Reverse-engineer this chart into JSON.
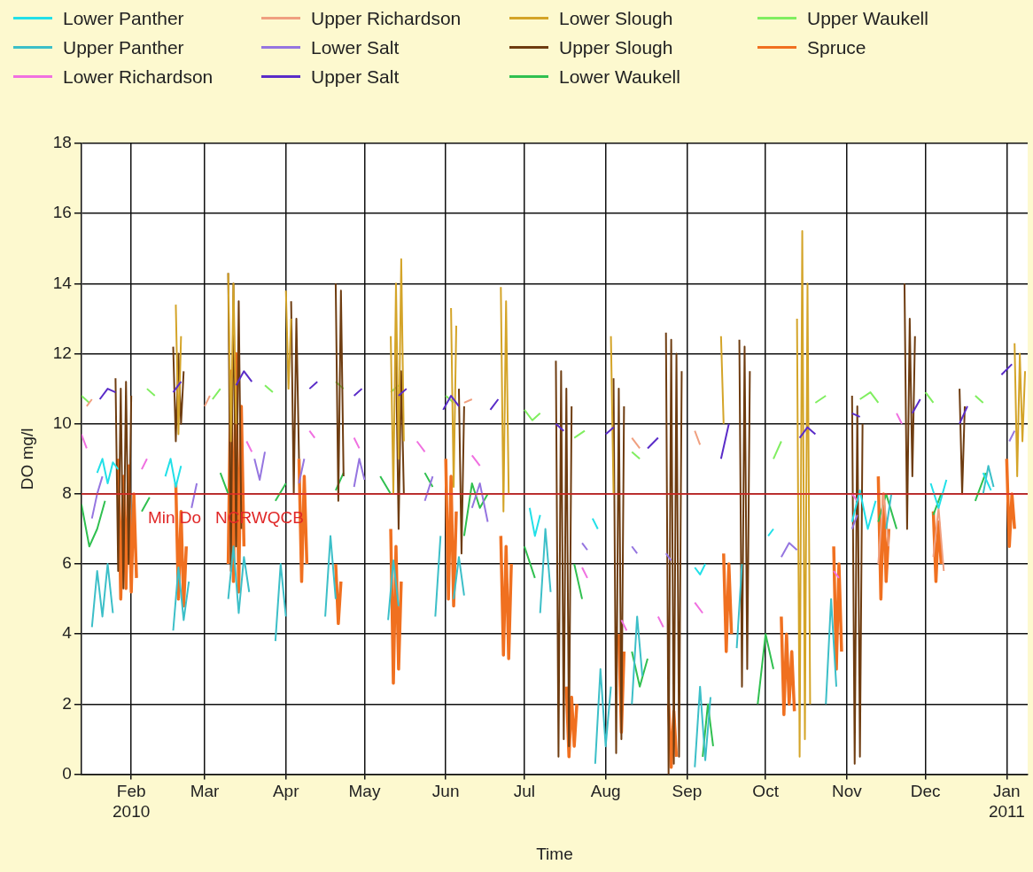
{
  "chart_data": {
    "type": "line",
    "xlabel": "Time",
    "ylabel": "DO mg/l",
    "legend": "top",
    "grid": true,
    "marker": "none",
    "line_style": "solid",
    "xlim": [
      "2010-01-13",
      "2011-01-09"
    ],
    "xticks": [
      {
        "value": "2010-02-01",
        "label": "Feb\n2010"
      },
      {
        "value": "2010-03-01",
        "label": "Mar"
      },
      {
        "value": "2010-04-01",
        "label": "Apr"
      },
      {
        "value": "2010-05-01",
        "label": "May"
      },
      {
        "value": "2010-06-01",
        "label": "Jun"
      },
      {
        "value": "2010-07-01",
        "label": "Jul"
      },
      {
        "value": "2010-08-01",
        "label": "Aug"
      },
      {
        "value": "2010-09-01",
        "label": "Sep"
      },
      {
        "value": "2010-10-01",
        "label": "Oct"
      },
      {
        "value": "2010-11-01",
        "label": "Nov"
      },
      {
        "value": "2010-12-01",
        "label": "Dec"
      },
      {
        "value": "2011-01-01",
        "label": "Jan\n2011"
      }
    ],
    "ylim": [
      0,
      18
    ],
    "yticks": [
      0,
      2,
      4,
      6,
      8,
      10,
      12,
      14,
      16,
      18
    ],
    "ref_lines": [
      {
        "axis": "y",
        "value": 8,
        "label": "Min Do   NCRWQCB",
        "color": "#e02828"
      }
    ],
    "series": [
      {
        "name": "Lower Panther",
        "color": "#22e0e8",
        "x": [
          "2010-01-19",
          "2010-01-21",
          "2010-01-23",
          "2010-01-25",
          "2010-01-27",
          "2010-01-28",
          "2010-02-14",
          "2010-02-16",
          "2010-02-18",
          "2010-02-20",
          "2010-02-21",
          "2010-07-03",
          "2010-07-05",
          "2010-07-07",
          "2010-07-08",
          "2010-07-27",
          "2010-07-29",
          "2010-07-30",
          "2010-09-04",
          "2010-09-06",
          "2010-09-08",
          "2010-09-09",
          "2010-10-02",
          "2010-10-04",
          "2010-10-05",
          "2010-11-03",
          "2010-11-06",
          "2010-11-09",
          "2010-11-12",
          "2010-11-13",
          "2010-12-03",
          "2010-12-06",
          "2010-12-09",
          "2010-12-10",
          "2010-12-23",
          "2010-12-26"
        ],
        "values": [
          8.6,
          9.0,
          8.3,
          8.9,
          8.7,
          null,
          8.5,
          9.0,
          8.2,
          8.8,
          null,
          7.6,
          6.8,
          7.4,
          null,
          7.3,
          7.0,
          null,
          5.9,
          5.7,
          6.0,
          null,
          6.8,
          7.0,
          null,
          7.2,
          8.1,
          7.0,
          7.8,
          null,
          8.3,
          7.6,
          8.4,
          null,
          8.6,
          8.1
        ]
      },
      {
        "name": "Upper Panther",
        "color": "#3cbfc8",
        "x": [
          "2010-01-17",
          "2010-01-19",
          "2010-01-21",
          "2010-01-23",
          "2010-01-25",
          "2010-01-26",
          "2010-02-17",
          "2010-02-19",
          "2010-02-21",
          "2010-02-23",
          "2010-02-24",
          "2010-03-10",
          "2010-03-12",
          "2010-03-14",
          "2010-03-16",
          "2010-03-18",
          "2010-03-19",
          "2010-03-28",
          "2010-03-30",
          "2010-04-01",
          "2010-04-02",
          "2010-04-16",
          "2010-04-18",
          "2010-04-20",
          "2010-04-21",
          "2010-05-10",
          "2010-05-12",
          "2010-05-14",
          "2010-05-15",
          "2010-05-28",
          "2010-05-30",
          "2010-05-31",
          "2010-06-04",
          "2010-06-06",
          "2010-06-08",
          "2010-06-09",
          "2010-07-07",
          "2010-07-09",
          "2010-07-11",
          "2010-07-12",
          "2010-07-28",
          "2010-07-30",
          "2010-08-01",
          "2010-08-03",
          "2010-08-04",
          "2010-08-11",
          "2010-08-13",
          "2010-08-15",
          "2010-08-16",
          "2010-09-04",
          "2010-09-06",
          "2010-09-08",
          "2010-09-10",
          "2010-09-11",
          "2010-09-20",
          "2010-09-22",
          "2010-09-23",
          "2010-10-24",
          "2010-10-26",
          "2010-10-28",
          "2010-10-29",
          "2010-11-16",
          "2010-11-18",
          "2010-11-19",
          "2010-12-23",
          "2010-12-25",
          "2010-12-27"
        ],
        "values": [
          4.2,
          5.8,
          4.5,
          6.0,
          4.6,
          null,
          4.1,
          5.9,
          4.4,
          5.5,
          null,
          5.0,
          6.5,
          4.6,
          6.2,
          5.2,
          null,
          3.8,
          6.0,
          4.5,
          null,
          4.5,
          6.8,
          5.0,
          null,
          4.4,
          6.1,
          4.8,
          null,
          4.5,
          6.8,
          null,
          5.0,
          6.2,
          5.1,
          null,
          4.6,
          7.0,
          5.2,
          null,
          0.3,
          3.0,
          0.8,
          2.5,
          null,
          2.0,
          4.5,
          2.8,
          null,
          0.2,
          2.5,
          0.4,
          2.2,
          null,
          3.6,
          6.0,
          null,
          2.0,
          5.0,
          2.5,
          null,
          7.0,
          8.0,
          null,
          8.0,
          8.8,
          8.2
        ]
      },
      {
        "name": "Lower Richardson",
        "color": "#f070e0",
        "x": [
          "2010-01-13",
          "2010-01-15",
          "2010-01-16",
          "2010-02-05",
          "2010-02-07",
          "2010-02-08",
          "2010-03-17",
          "2010-03-19",
          "2010-03-20",
          "2010-04-10",
          "2010-04-12",
          "2010-04-13",
          "2010-04-27",
          "2010-04-29",
          "2010-04-30",
          "2010-05-21",
          "2010-05-24",
          "2010-05-25",
          "2010-06-11",
          "2010-06-14",
          "2010-06-15",
          "2010-07-23",
          "2010-07-25",
          "2010-07-26",
          "2010-08-07",
          "2010-08-09",
          "2010-08-10",
          "2010-08-21",
          "2010-08-23",
          "2010-08-24",
          "2010-09-04",
          "2010-09-07",
          "2010-09-08",
          "2010-10-27",
          "2010-10-29",
          "2010-10-30",
          "2010-11-03",
          "2010-11-05",
          "2010-11-06",
          "2010-11-20",
          "2010-11-22"
        ],
        "values": [
          9.7,
          9.3,
          null,
          8.7,
          9.0,
          null,
          9.5,
          9.2,
          null,
          9.8,
          9.6,
          null,
          9.6,
          9.3,
          null,
          9.5,
          9.2,
          null,
          9.1,
          8.8,
          null,
          5.9,
          5.6,
          null,
          4.4,
          4.1,
          null,
          4.5,
          4.2,
          null,
          4.9,
          4.6,
          null,
          5.8,
          5.6,
          null,
          8.0,
          7.8,
          null,
          10.3,
          10.0
        ]
      },
      {
        "name": "Upper Richardson",
        "color": "#f0a080",
        "x": [
          "2010-01-15",
          "2010-01-17",
          "2010-01-18",
          "2010-03-01",
          "2010-03-03",
          "2010-03-04",
          "2010-06-08",
          "2010-06-11",
          "2010-06-12",
          "2010-08-11",
          "2010-08-14",
          "2010-08-15",
          "2010-09-04",
          "2010-09-06",
          "2010-09-07",
          "2010-11-13",
          "2010-11-15",
          "2010-11-17",
          "2010-11-18",
          "2010-12-04",
          "2010-12-06",
          "2010-12-08"
        ],
        "values": [
          10.5,
          10.7,
          null,
          10.5,
          10.8,
          null,
          10.6,
          10.7,
          null,
          9.6,
          9.3,
          null,
          9.8,
          9.4,
          null,
          6.0,
          8.0,
          6.5,
          null,
          6.2,
          7.6,
          5.8
        ]
      },
      {
        "name": "Lower Salt",
        "color": "#9575e0",
        "x": [
          "2010-01-17",
          "2010-01-19",
          "2010-01-21",
          "2010-01-22",
          "2010-02-24",
          "2010-02-26",
          "2010-02-27",
          "2010-03-20",
          "2010-03-22",
          "2010-03-24",
          "2010-03-25",
          "2010-04-06",
          "2010-04-08",
          "2010-04-09",
          "2010-04-27",
          "2010-04-29",
          "2010-05-01",
          "2010-05-02",
          "2010-05-24",
          "2010-05-27",
          "2010-05-28",
          "2010-06-11",
          "2010-06-14",
          "2010-06-17",
          "2010-06-18",
          "2010-07-23",
          "2010-07-25",
          "2010-07-26",
          "2010-08-11",
          "2010-08-13",
          "2010-08-14",
          "2010-08-24",
          "2010-08-26",
          "2010-08-27",
          "2010-10-07",
          "2010-10-10",
          "2010-10-13",
          "2010-10-14",
          "2010-11-03",
          "2010-11-05",
          "2010-11-06",
          "2011-01-02",
          "2011-01-04"
        ],
        "values": [
          7.3,
          8.0,
          8.5,
          null,
          7.6,
          8.3,
          null,
          9.0,
          8.4,
          9.2,
          null,
          8.3,
          9.0,
          null,
          8.2,
          9.0,
          8.4,
          null,
          7.8,
          8.5,
          null,
          7.6,
          8.3,
          7.2,
          null,
          6.6,
          6.4,
          null,
          6.5,
          6.3,
          null,
          6.3,
          6.1,
          null,
          6.2,
          6.6,
          6.4,
          null,
          7.0,
          7.4,
          null,
          9.5,
          9.8
        ]
      },
      {
        "name": "Upper Salt",
        "color": "#5a2cc8",
        "x": [
          "2010-01-20",
          "2010-01-23",
          "2010-01-26",
          "2010-01-27",
          "2010-02-17",
          "2010-02-20",
          "2010-02-21",
          "2010-03-13",
          "2010-03-16",
          "2010-03-19",
          "2010-03-20",
          "2010-04-10",
          "2010-04-13",
          "2010-04-14",
          "2010-04-27",
          "2010-04-30",
          "2010-05-01",
          "2010-05-14",
          "2010-05-17",
          "2010-05-18",
          "2010-05-31",
          "2010-06-03",
          "2010-06-06",
          "2010-06-07",
          "2010-06-18",
          "2010-06-21",
          "2010-06-22",
          "2010-07-13",
          "2010-07-16",
          "2010-07-17",
          "2010-08-01",
          "2010-08-04",
          "2010-08-05",
          "2010-08-17",
          "2010-08-21",
          "2010-08-22",
          "2010-09-14",
          "2010-09-17",
          "2010-09-18",
          "2010-10-14",
          "2010-10-17",
          "2010-10-20",
          "2010-10-21",
          "2010-11-03",
          "2010-11-06",
          "2010-11-07",
          "2010-11-26",
          "2010-11-29",
          "2010-11-30",
          "2010-12-14",
          "2010-12-17",
          "2010-12-18",
          "2010-12-30",
          "2011-01-03"
        ],
        "values": [
          10.7,
          11.0,
          10.9,
          null,
          10.9,
          11.2,
          null,
          11.1,
          11.5,
          11.2,
          null,
          11.0,
          11.2,
          null,
          10.8,
          11.0,
          null,
          10.8,
          11.0,
          null,
          10.4,
          10.8,
          10.5,
          null,
          10.4,
          10.7,
          null,
          10.0,
          9.8,
          null,
          9.7,
          9.9,
          null,
          9.3,
          9.6,
          null,
          9.0,
          10.0,
          null,
          9.6,
          9.9,
          9.7,
          null,
          10.3,
          10.2,
          null,
          10.3,
          10.7,
          null,
          10.0,
          10.5,
          null,
          11.4,
          11.7
        ]
      },
      {
        "name": "Lower Slough",
        "color": "#d4a428",
        "x": [
          "2010-02-18",
          "2010-02-19",
          "2010-02-20",
          "2010-02-21",
          "2010-03-10",
          "2010-03-11",
          "2010-03-12",
          "2010-03-13",
          "2010-03-14",
          "2010-04-01",
          "2010-04-02",
          "2010-04-03",
          "2010-04-04",
          "2010-05-11",
          "2010-05-12",
          "2010-05-13",
          "2010-05-14",
          "2010-05-15",
          "2010-05-16",
          "2010-05-17",
          "2010-06-03",
          "2010-06-04",
          "2010-06-05",
          "2010-06-06",
          "2010-06-22",
          "2010-06-23",
          "2010-06-24",
          "2010-06-25",
          "2010-06-26",
          "2010-08-03",
          "2010-08-04",
          "2010-08-05",
          "2010-09-14",
          "2010-09-15",
          "2010-09-16",
          "2010-10-13",
          "2010-10-14",
          "2010-10-15",
          "2010-10-16",
          "2010-10-17",
          "2010-10-18",
          "2010-10-19",
          "2011-01-04",
          "2011-01-05",
          "2011-01-06",
          "2011-01-07",
          "2011-01-08"
        ],
        "values": [
          13.4,
          9.7,
          12.5,
          null,
          14.3,
          9.5,
          14.0,
          10.0,
          null,
          13.8,
          11.0,
          13.0,
          null,
          12.5,
          8.0,
          14.0,
          9.0,
          14.7,
          9.5,
          null,
          13.3,
          8.2,
          12.8,
          null,
          13.9,
          7.5,
          13.5,
          8.0,
          null,
          12.5,
          8.0,
          null,
          12.5,
          10.0,
          null,
          13.0,
          0.5,
          15.5,
          1.0,
          14.0,
          2.0,
          null,
          12.3,
          8.5,
          12.0,
          9.5,
          11.5
        ]
      },
      {
        "name": "Upper Slough",
        "color": "#6e3c10",
        "x": [
          "2010-01-26",
          "2010-01-27",
          "2010-01-28",
          "2010-01-29",
          "2010-01-30",
          "2010-01-31",
          "2010-02-01",
          "2010-02-02",
          "2010-02-17",
          "2010-02-18",
          "2010-02-19",
          "2010-02-20",
          "2010-02-21",
          "2010-02-22",
          "2010-03-10",
          "2010-03-11",
          "2010-03-12",
          "2010-03-13",
          "2010-03-14",
          "2010-03-15",
          "2010-03-16",
          "2010-04-03",
          "2010-04-04",
          "2010-04-05",
          "2010-04-06",
          "2010-04-07",
          "2010-04-20",
          "2010-04-21",
          "2010-04-22",
          "2010-04-23",
          "2010-04-24",
          "2010-05-13",
          "2010-05-14",
          "2010-05-15",
          "2010-05-16",
          "2010-05-17",
          "2010-06-06",
          "2010-06-07",
          "2010-06-08",
          "2010-06-09",
          "2010-07-13",
          "2010-07-14",
          "2010-07-15",
          "2010-07-16",
          "2010-07-17",
          "2010-07-18",
          "2010-07-19",
          "2010-07-20",
          "2010-08-04",
          "2010-08-05",
          "2010-08-06",
          "2010-08-07",
          "2010-08-08",
          "2010-08-09",
          "2010-08-24",
          "2010-08-25",
          "2010-08-26",
          "2010-08-27",
          "2010-08-28",
          "2010-08-29",
          "2010-08-30",
          "2010-08-31",
          "2010-09-21",
          "2010-09-22",
          "2010-09-23",
          "2010-09-24",
          "2010-09-25",
          "2010-09-26",
          "2010-11-03",
          "2010-11-04",
          "2010-11-05",
          "2010-11-06",
          "2010-11-07",
          "2010-11-08",
          "2010-11-23",
          "2010-11-24",
          "2010-11-25",
          "2010-11-26",
          "2010-11-27",
          "2010-11-28",
          "2010-12-14",
          "2010-12-15",
          "2010-12-16"
        ],
        "values": [
          11.3,
          5.8,
          11.0,
          5.3,
          11.2,
          6.0,
          10.8,
          null,
          12.2,
          9.5,
          12.0,
          10.0,
          11.5,
          null,
          14.3,
          5.8,
          14.0,
          6.5,
          13.5,
          7.0,
          null,
          13.5,
          8.0,
          13.0,
          9.0,
          null,
          14.0,
          7.8,
          13.8,
          8.5,
          null,
          12.0,
          7.0,
          11.5,
          8.0,
          null,
          11.0,
          6.3,
          10.5,
          null,
          11.8,
          0.5,
          11.5,
          1.0,
          11.0,
          0.8,
          10.5,
          null,
          11.3,
          0.6,
          11.0,
          1.0,
          10.5,
          null,
          12.6,
          0.0,
          12.4,
          0.3,
          12.0,
          0.5,
          11.5,
          null,
          12.4,
          2.5,
          12.2,
          3.0,
          11.5,
          null,
          10.8,
          0.3,
          10.5,
          0.5,
          10.0,
          null,
          14.0,
          7.0,
          13.0,
          8.5,
          12.5,
          null,
          11.0,
          8.0,
          10.5
        ]
      },
      {
        "name": "Lower Waukell",
        "color": "#30c050",
        "x": [
          "2010-01-13",
          "2010-01-16",
          "2010-01-19",
          "2010-01-22",
          "2010-01-23",
          "2010-02-05",
          "2010-02-08",
          "2010-02-09",
          "2010-03-07",
          "2010-03-10",
          "2010-03-11",
          "2010-03-28",
          "2010-04-01",
          "2010-04-02",
          "2010-04-20",
          "2010-04-23",
          "2010-04-24",
          "2010-05-07",
          "2010-05-11",
          "2010-05-12",
          "2010-05-24",
          "2010-05-27",
          "2010-05-28",
          "2010-06-08",
          "2010-06-11",
          "2010-06-14",
          "2010-06-17",
          "2010-06-18",
          "2010-07-01",
          "2010-07-05",
          "2010-07-06",
          "2010-07-20",
          "2010-07-23",
          "2010-07-24",
          "2010-08-11",
          "2010-08-14",
          "2010-08-17",
          "2010-08-18",
          "2010-09-07",
          "2010-09-09",
          "2010-09-11",
          "2010-09-12",
          "2010-09-28",
          "2010-10-01",
          "2010-10-04",
          "2010-10-05",
          "2010-11-13",
          "2010-11-16",
          "2010-11-20",
          "2010-11-21",
          "2010-12-04",
          "2010-12-07",
          "2010-12-08",
          "2010-12-20",
          "2010-12-24"
        ],
        "values": [
          7.7,
          6.5,
          7.0,
          7.8,
          null,
          7.5,
          7.9,
          null,
          8.6,
          8.0,
          null,
          7.8,
          8.3,
          null,
          8.1,
          8.6,
          null,
          8.5,
          8.0,
          null,
          8.6,
          8.2,
          null,
          6.8,
          8.3,
          7.6,
          8.0,
          null,
          6.5,
          5.6,
          null,
          6.0,
          5.0,
          null,
          3.5,
          2.5,
          3.3,
          null,
          0.5,
          2.0,
          0.8,
          null,
          2.0,
          4.0,
          3.0,
          null,
          7.2,
          8.0,
          7.0,
          null,
          7.4,
          8.0,
          null,
          7.8,
          8.6
        ]
      },
      {
        "name": "Upper Waukell",
        "color": "#80ee60",
        "x": [
          "2010-01-13",
          "2010-01-16",
          "2010-01-17",
          "2010-02-07",
          "2010-02-10",
          "2010-02-11",
          "2010-03-04",
          "2010-03-07",
          "2010-03-08",
          "2010-03-24",
          "2010-03-27",
          "2010-03-28",
          "2010-04-20",
          "2010-04-23",
          "2010-04-24",
          "2010-05-11",
          "2010-05-14",
          "2010-05-15",
          "2010-06-01",
          "2010-06-04",
          "2010-06-05",
          "2010-07-01",
          "2010-07-04",
          "2010-07-07",
          "2010-07-08",
          "2010-07-20",
          "2010-07-24",
          "2010-07-25",
          "2010-08-11",
          "2010-08-14",
          "2010-08-15",
          "2010-10-04",
          "2010-10-07",
          "2010-10-08",
          "2010-10-20",
          "2010-10-24",
          "2010-10-25",
          "2010-11-06",
          "2010-11-10",
          "2010-11-13",
          "2010-11-14",
          "2010-12-01",
          "2010-12-04",
          "2010-12-05",
          "2010-12-20",
          "2010-12-23"
        ],
        "values": [
          10.8,
          10.6,
          null,
          11.0,
          10.8,
          null,
          10.7,
          11.0,
          null,
          11.1,
          10.9,
          null,
          11.2,
          11.0,
          null,
          10.9,
          11.1,
          null,
          10.8,
          10.6,
          null,
          10.4,
          10.1,
          10.3,
          null,
          9.6,
          9.8,
          null,
          9.2,
          9.0,
          null,
          9.0,
          9.5,
          null,
          10.6,
          10.8,
          null,
          10.7,
          10.9,
          10.6,
          null,
          10.9,
          10.6,
          null,
          10.8,
          10.6
        ]
      },
      {
        "name": "Spruce",
        "color": "#f07020",
        "x": [
          "2010-01-27",
          "2010-01-28",
          "2010-01-29",
          "2010-01-30",
          "2010-01-31",
          "2010-02-01",
          "2010-02-02",
          "2010-02-03",
          "2010-02-04",
          "2010-02-18",
          "2010-02-19",
          "2010-02-20",
          "2010-02-21",
          "2010-02-22",
          "2010-02-23",
          "2010-03-10",
          "2010-03-11",
          "2010-03-12",
          "2010-03-13",
          "2010-03-14",
          "2010-03-15",
          "2010-03-16",
          "2010-03-17",
          "2010-04-06",
          "2010-04-07",
          "2010-04-08",
          "2010-04-09",
          "2010-04-10",
          "2010-04-20",
          "2010-04-21",
          "2010-04-22",
          "2010-04-23",
          "2010-05-11",
          "2010-05-12",
          "2010-05-13",
          "2010-05-14",
          "2010-05-15",
          "2010-05-16",
          "2010-06-01",
          "2010-06-02",
          "2010-06-03",
          "2010-06-04",
          "2010-06-05",
          "2010-06-06",
          "2010-06-22",
          "2010-06-23",
          "2010-06-24",
          "2010-06-25",
          "2010-06-26",
          "2010-06-27",
          "2010-07-17",
          "2010-07-18",
          "2010-07-19",
          "2010-07-20",
          "2010-07-21",
          "2010-07-22",
          "2010-08-06",
          "2010-08-07",
          "2010-08-08",
          "2010-08-09",
          "2010-08-25",
          "2010-08-26",
          "2010-08-27",
          "2010-08-28",
          "2010-08-29",
          "2010-09-15",
          "2010-09-16",
          "2010-09-17",
          "2010-09-18",
          "2010-09-19",
          "2010-10-07",
          "2010-10-08",
          "2010-10-09",
          "2010-10-10",
          "2010-10-11",
          "2010-10-12",
          "2010-10-13",
          "2010-10-27",
          "2010-10-28",
          "2010-10-29",
          "2010-10-30",
          "2010-10-31",
          "2010-11-13",
          "2010-11-14",
          "2010-11-15",
          "2010-11-16",
          "2010-11-17",
          "2010-11-18",
          "2010-12-04",
          "2010-12-05",
          "2010-12-06",
          "2010-12-07",
          "2010-12-08",
          "2011-01-01",
          "2011-01-02",
          "2011-01-03",
          "2011-01-04"
        ],
        "values": [
          9.0,
          5.0,
          8.5,
          5.3,
          8.8,
          5.2,
          8.0,
          5.6,
          null,
          8.3,
          5.0,
          7.5,
          4.8,
          6.5,
          null,
          6.0,
          11.5,
          5.5,
          12.0,
          5.2,
          10.5,
          6.5,
          null,
          9.0,
          5.5,
          8.5,
          6.0,
          null,
          6.0,
          4.3,
          5.5,
          null,
          7.0,
          2.6,
          6.5,
          3.0,
          5.5,
          null,
          9.0,
          5.0,
          8.5,
          4.8,
          7.5,
          null,
          6.8,
          3.4,
          6.5,
          3.3,
          6.0,
          null,
          2.5,
          0.5,
          2.2,
          0.8,
          2.0,
          null,
          4.0,
          1.2,
          3.5,
          null,
          2.0,
          0.2,
          1.8,
          0.5,
          null,
          6.3,
          3.5,
          6.0,
          4.0,
          null,
          4.5,
          1.7,
          4.0,
          2.0,
          3.5,
          1.8,
          null,
          6.5,
          3.0,
          6.0,
          3.5,
          null,
          8.5,
          5.0,
          8.0,
          5.5,
          7.0,
          null,
          7.5,
          5.5,
          7.2,
          6.0,
          null,
          9.0,
          6.5,
          8.0,
          7.0
        ]
      }
    ]
  }
}
